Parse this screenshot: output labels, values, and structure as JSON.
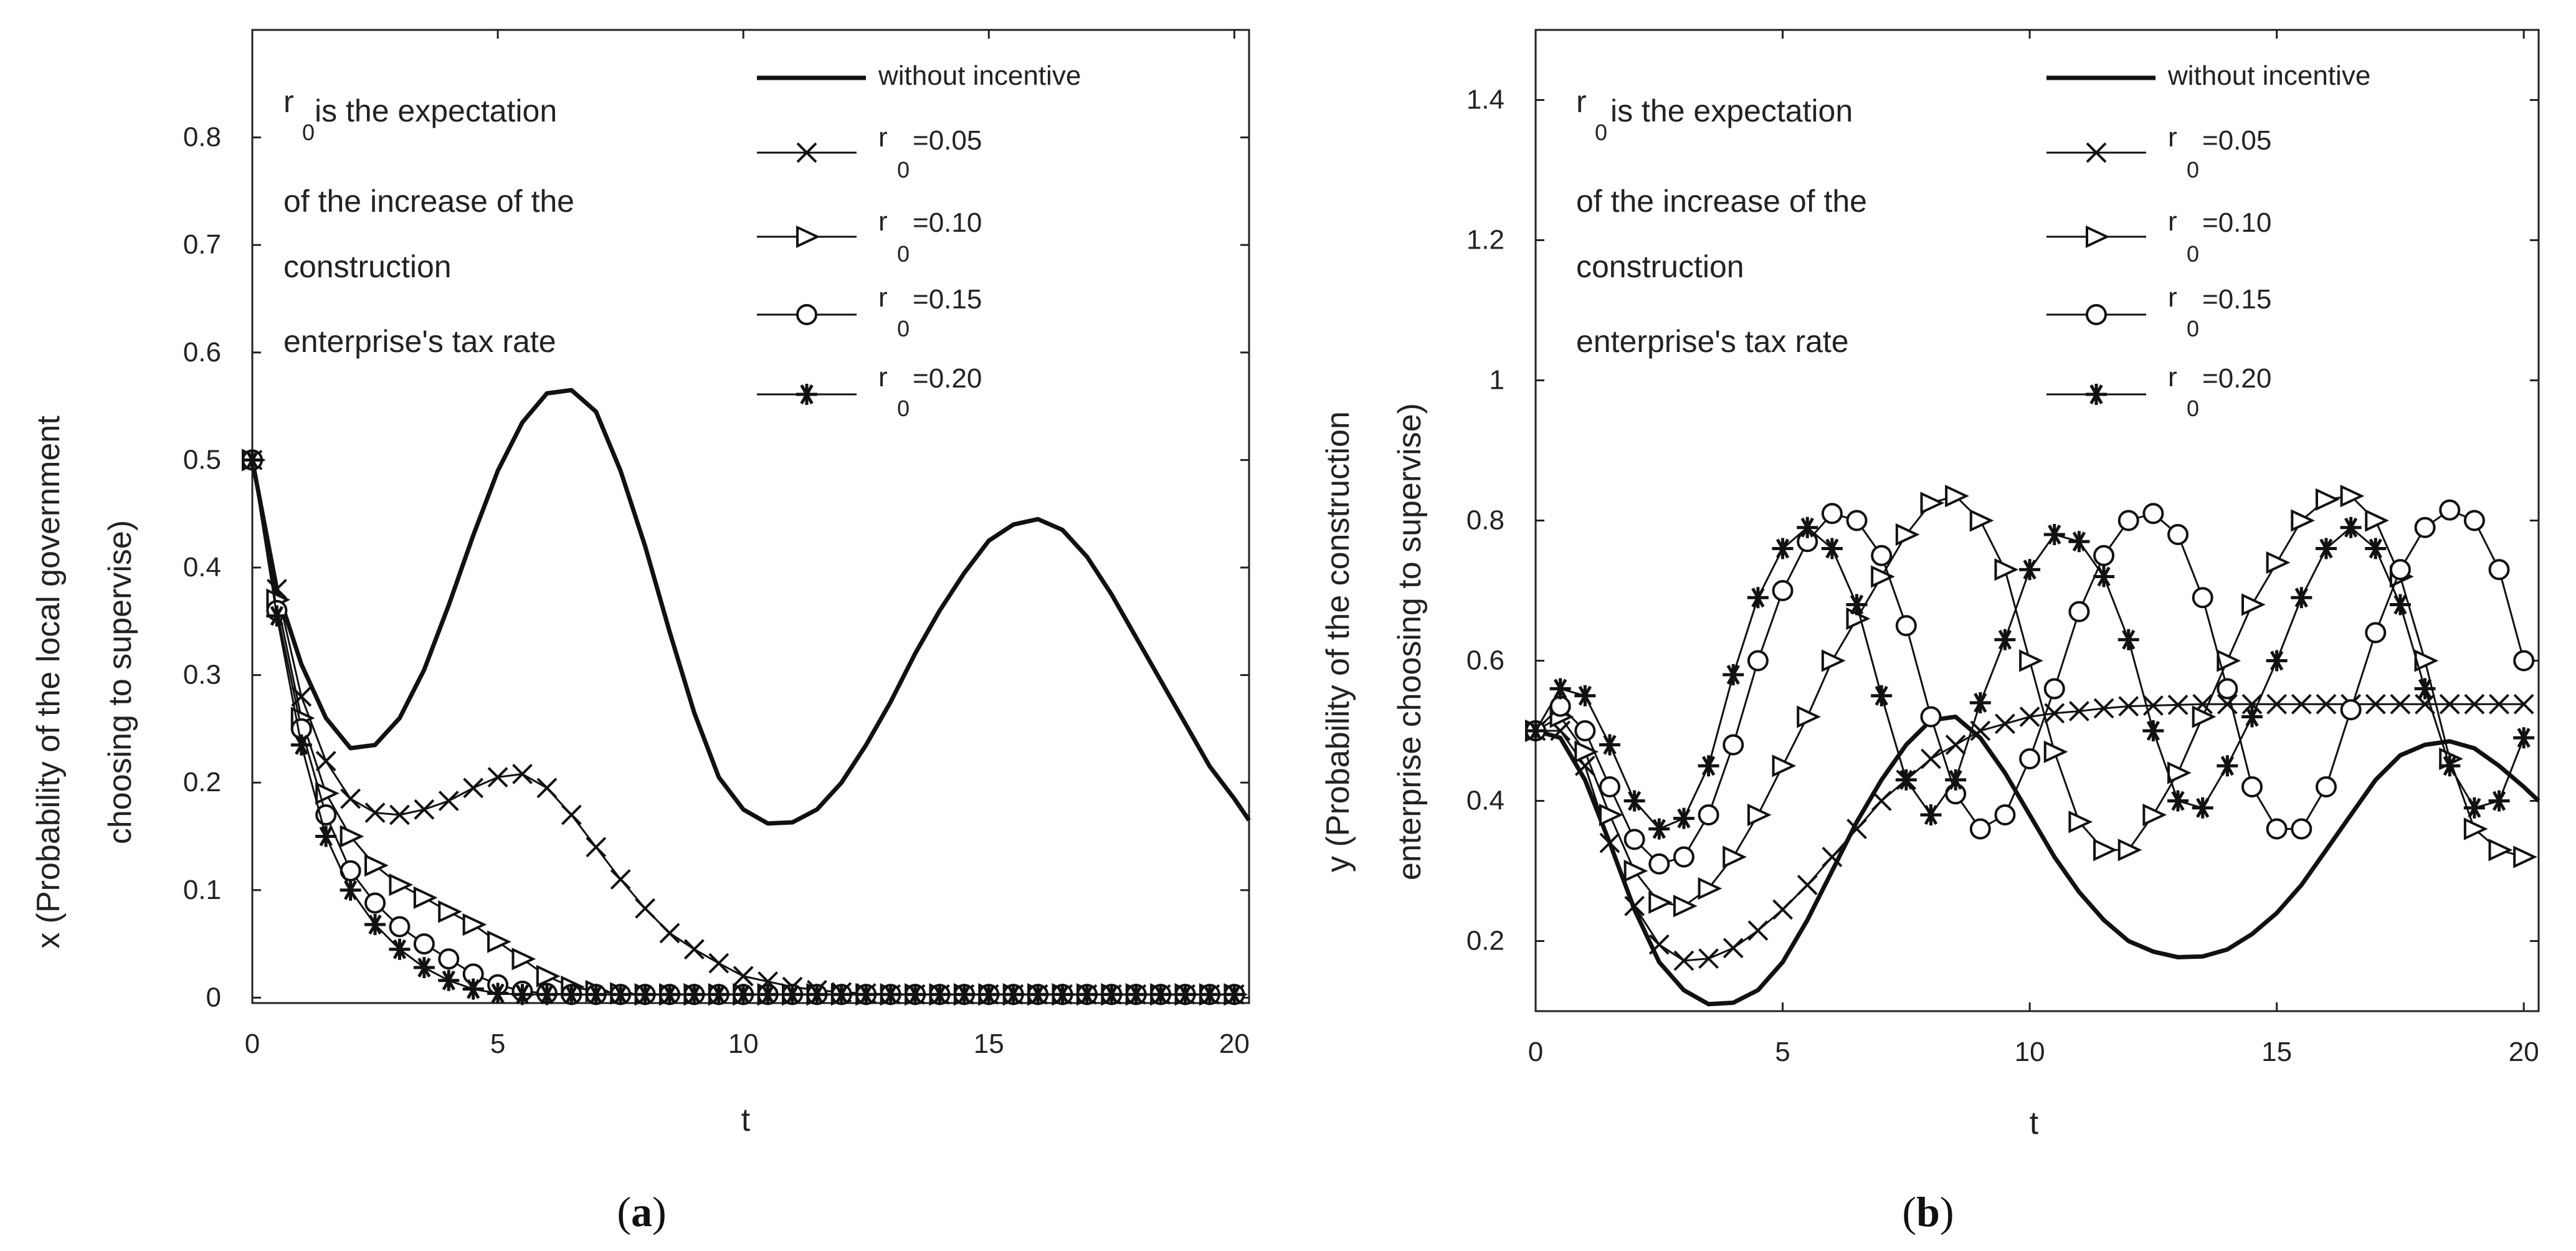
{
  "chart_data": [
    {
      "type": "line",
      "panel": "a",
      "caption_label": "a",
      "xlabel": "t",
      "ylabel_line1": "x (Probability of the local government",
      "ylabel_line2": "choosing to supervise)",
      "xlim": [
        0,
        20.3
      ],
      "ylim": [
        -0.005,
        0.9
      ],
      "xticks": [
        0,
        5,
        10,
        15,
        20
      ],
      "yticks": [
        0,
        0.1,
        0.2,
        0.3,
        0.4,
        0.5,
        0.6,
        0.7,
        0.8
      ],
      "ytick_labels": [
        "0",
        "0.1",
        "0.2",
        "0.3",
        "0.4",
        "0.5",
        "0.6",
        "0.7",
        "0.8"
      ],
      "annotation": {
        "r_main": "r",
        "r_sub": "0",
        "line1_tail": " is the expectation",
        "line2": "of the increase of the",
        "line3": "construction",
        "line4": "enterprise's tax rate"
      },
      "legend": [
        {
          "label": "without incentive"
        },
        {
          "r": "r",
          "sub": "0",
          "val": "=0.05"
        },
        {
          "r": "r",
          "sub": "0",
          "val": "=0.10"
        },
        {
          "r": "r",
          "sub": "0",
          "val": "=0.15"
        },
        {
          "r": "r",
          "sub": "0",
          "val": "=0.20"
        }
      ],
      "series": [
        {
          "name": "without incentive",
          "marker": "none",
          "x": [
            0,
            0.5,
            1,
            1.5,
            2,
            2.5,
            3,
            3.5,
            4,
            4.5,
            5,
            5.5,
            6,
            6.5,
            7,
            7.5,
            8,
            8.5,
            9,
            9.5,
            10,
            10.5,
            11,
            11.5,
            12,
            12.5,
            13,
            13.5,
            14,
            14.5,
            15,
            15.5,
            16,
            16.5,
            17,
            17.5,
            18,
            18.5,
            19,
            19.5,
            20,
            20.3
          ],
          "y": [
            0.5,
            0.38,
            0.31,
            0.26,
            0.232,
            0.235,
            0.26,
            0.305,
            0.365,
            0.43,
            0.49,
            0.535,
            0.562,
            0.565,
            0.545,
            0.49,
            0.42,
            0.34,
            0.265,
            0.205,
            0.175,
            0.162,
            0.163,
            0.175,
            0.2,
            0.235,
            0.275,
            0.32,
            0.36,
            0.395,
            0.425,
            0.44,
            0.445,
            0.435,
            0.41,
            0.375,
            0.335,
            0.295,
            0.255,
            0.215,
            0.185,
            0.165
          ]
        },
        {
          "name": "r0=0.05",
          "marker": "x",
          "x": [
            0,
            0.5,
            1,
            1.5,
            2,
            2.5,
            3,
            3.5,
            4,
            4.5,
            5,
            5.5,
            6,
            6.5,
            7,
            7.5,
            8,
            8.5,
            9,
            9.5,
            10,
            10.5,
            11,
            11.5,
            12,
            12.5,
            13,
            13.5,
            14,
            14.5,
            15,
            15.5,
            16,
            16.5,
            17,
            17.5,
            18,
            18.5,
            19,
            19.5,
            20
          ],
          "y": [
            0.5,
            0.38,
            0.28,
            0.22,
            0.185,
            0.172,
            0.17,
            0.175,
            0.183,
            0.195,
            0.205,
            0.208,
            0.195,
            0.17,
            0.14,
            0.11,
            0.083,
            0.06,
            0.045,
            0.032,
            0.02,
            0.015,
            0.01,
            0.007,
            0.005,
            0.004,
            0.003,
            0.003,
            0.003,
            0.003,
            0.003,
            0.003,
            0.003,
            0.003,
            0.003,
            0.003,
            0.003,
            0.003,
            0.003,
            0.003,
            0.003
          ]
        },
        {
          "name": "r0=0.10",
          "marker": "triangle-right",
          "x": [
            0,
            0.5,
            1,
            1.5,
            2,
            2.5,
            3,
            3.5,
            4,
            4.5,
            5,
            5.5,
            6,
            6.5,
            7,
            7.5,
            8,
            8.5,
            9,
            9.5,
            10,
            10.5,
            11,
            11.5,
            12,
            12.5,
            13,
            13.5,
            14,
            14.5,
            15,
            15.5,
            16,
            16.5,
            17,
            17.5,
            18,
            18.5,
            19,
            19.5,
            20
          ],
          "y": [
            0.5,
            0.37,
            0.26,
            0.19,
            0.15,
            0.123,
            0.105,
            0.093,
            0.08,
            0.068,
            0.052,
            0.036,
            0.02,
            0.01,
            0.006,
            0.004,
            0.003,
            0.003,
            0.003,
            0.003,
            0.003,
            0.003,
            0.003,
            0.003,
            0.003,
            0.003,
            0.003,
            0.003,
            0.003,
            0.003,
            0.003,
            0.003,
            0.003,
            0.003,
            0.003,
            0.003,
            0.003,
            0.003,
            0.003,
            0.003,
            0.003
          ]
        },
        {
          "name": "r0=0.15",
          "marker": "circle",
          "x": [
            0,
            0.5,
            1,
            1.5,
            2,
            2.5,
            3,
            3.5,
            4,
            4.5,
            5,
            5.5,
            6,
            6.5,
            7,
            7.5,
            8,
            8.5,
            9,
            9.5,
            10,
            10.5,
            11,
            11.5,
            12,
            12.5,
            13,
            13.5,
            14,
            14.5,
            15,
            15.5,
            16,
            16.5,
            17,
            17.5,
            18,
            18.5,
            19,
            19.5,
            20
          ],
          "y": [
            0.5,
            0.36,
            0.25,
            0.17,
            0.118,
            0.088,
            0.066,
            0.05,
            0.036,
            0.022,
            0.012,
            0.006,
            0.004,
            0.003,
            0.003,
            0.003,
            0.003,
            0.003,
            0.003,
            0.003,
            0.003,
            0.003,
            0.003,
            0.003,
            0.003,
            0.003,
            0.003,
            0.003,
            0.003,
            0.003,
            0.003,
            0.003,
            0.003,
            0.003,
            0.003,
            0.003,
            0.003,
            0.003,
            0.003,
            0.003,
            0.003
          ]
        },
        {
          "name": "r0=0.20",
          "marker": "asterisk",
          "x": [
            0,
            0.5,
            1,
            1.5,
            2,
            2.5,
            3,
            3.5,
            4,
            4.5,
            5,
            5.5,
            6,
            6.5,
            7,
            7.5,
            8,
            8.5,
            9,
            9.5,
            10,
            10.5,
            11,
            11.5,
            12,
            12.5,
            13,
            13.5,
            14,
            14.5,
            15,
            15.5,
            16,
            16.5,
            17,
            17.5,
            18,
            18.5,
            19,
            19.5,
            20
          ],
          "y": [
            0.5,
            0.355,
            0.235,
            0.15,
            0.1,
            0.068,
            0.045,
            0.028,
            0.016,
            0.008,
            0.004,
            0.003,
            0.003,
            0.003,
            0.003,
            0.003,
            0.003,
            0.003,
            0.003,
            0.003,
            0.003,
            0.003,
            0.003,
            0.003,
            0.003,
            0.003,
            0.003,
            0.003,
            0.003,
            0.003,
            0.003,
            0.003,
            0.003,
            0.003,
            0.003,
            0.003,
            0.003,
            0.003,
            0.003,
            0.003,
            0.003
          ]
        }
      ]
    },
    {
      "type": "line",
      "panel": "b",
      "caption_label": "b",
      "xlabel": "t",
      "ylabel_line1": "y (Probability of the construction",
      "ylabel_line2": "enterprise choosing to supervise)",
      "xlim": [
        0,
        20.3
      ],
      "ylim": [
        0.1,
        1.5
      ],
      "xticks": [
        0,
        5,
        10,
        15,
        20
      ],
      "yticks": [
        0.2,
        0.4,
        0.6,
        0.8,
        1,
        1.2,
        1.4
      ],
      "ytick_labels": [
        "0.2",
        "0.4",
        "0.6",
        "0.8",
        "1",
        "1.2",
        "1.4"
      ],
      "annotation": {
        "r_main": "r",
        "r_sub": "0",
        "line1_tail": " is the expectation",
        "line2": "of the increase of the",
        "line3": "construction",
        "line4": "enterprise's tax rate"
      },
      "legend": [
        {
          "label": "without incentive"
        },
        {
          "r": "r",
          "sub": "0",
          "val": "=0.05"
        },
        {
          "r": "r",
          "sub": "0",
          "val": "=0.10"
        },
        {
          "r": "r",
          "sub": "0",
          "val": "=0.15"
        },
        {
          "r": "r",
          "sub": "0",
          "val": "=0.20"
        }
      ],
      "series": [
        {
          "name": "without incentive",
          "marker": "none",
          "x": [
            0,
            0.5,
            1,
            1.5,
            2,
            2.5,
            3,
            3.5,
            4,
            4.5,
            5,
            5.5,
            6,
            6.5,
            7,
            7.5,
            8,
            8.5,
            9,
            9.5,
            10,
            10.5,
            11,
            11.5,
            12,
            12.5,
            13,
            13.5,
            14,
            14.5,
            15,
            15.5,
            16,
            16.5,
            17,
            17.5,
            18,
            18.5,
            19,
            19.5,
            20,
            20.3
          ],
          "y": [
            0.5,
            0.49,
            0.43,
            0.34,
            0.245,
            0.17,
            0.13,
            0.11,
            0.112,
            0.13,
            0.17,
            0.23,
            0.3,
            0.37,
            0.43,
            0.48,
            0.515,
            0.52,
            0.49,
            0.44,
            0.38,
            0.32,
            0.27,
            0.23,
            0.2,
            0.185,
            0.177,
            0.178,
            0.188,
            0.21,
            0.24,
            0.28,
            0.33,
            0.38,
            0.43,
            0.465,
            0.48,
            0.485,
            0.475,
            0.45,
            0.42,
            0.4
          ]
        },
        {
          "name": "r0=0.05",
          "marker": "x",
          "x": [
            0,
            0.5,
            1,
            1.5,
            2,
            2.5,
            3,
            3.5,
            4,
            4.5,
            5,
            5.5,
            6,
            6.5,
            7,
            7.5,
            8,
            8.5,
            9,
            9.5,
            10,
            10.5,
            11,
            11.5,
            12,
            12.5,
            13,
            13.5,
            14,
            14.5,
            15,
            15.5,
            16,
            16.5,
            17,
            17.5,
            18,
            18.5,
            19,
            19.5,
            20
          ],
          "y": [
            0.5,
            0.5,
            0.45,
            0.34,
            0.25,
            0.195,
            0.172,
            0.175,
            0.19,
            0.215,
            0.245,
            0.28,
            0.32,
            0.36,
            0.4,
            0.43,
            0.46,
            0.48,
            0.5,
            0.51,
            0.52,
            0.525,
            0.528,
            0.532,
            0.535,
            0.536,
            0.537,
            0.538,
            0.538,
            0.538,
            0.538,
            0.538,
            0.538,
            0.538,
            0.538,
            0.538,
            0.538,
            0.538,
            0.538,
            0.538,
            0.538
          ]
        },
        {
          "name": "r0=0.10",
          "marker": "triangle-right",
          "x": [
            0,
            0.5,
            1,
            1.5,
            2,
            2.5,
            3,
            3.5,
            4,
            4.5,
            5,
            5.5,
            6,
            6.5,
            7,
            7.5,
            8,
            8.5,
            9,
            9.5,
            10,
            10.5,
            11,
            11.5,
            12,
            12.5,
            13,
            13.5,
            14,
            14.5,
            15,
            15.5,
            16,
            16.5,
            17,
            17.5,
            18,
            18.5,
            19,
            19.5,
            20
          ],
          "y": [
            0.5,
            0.52,
            0.47,
            0.38,
            0.3,
            0.255,
            0.25,
            0.275,
            0.32,
            0.38,
            0.45,
            0.52,
            0.6,
            0.66,
            0.72,
            0.78,
            0.825,
            0.835,
            0.8,
            0.73,
            0.6,
            0.47,
            0.37,
            0.33,
            0.33,
            0.38,
            0.44,
            0.52,
            0.6,
            0.68,
            0.74,
            0.8,
            0.83,
            0.835,
            0.8,
            0.72,
            0.6,
            0.46,
            0.36,
            0.33,
            0.32
          ]
        },
        {
          "name": "r0=0.15",
          "marker": "circle",
          "x": [
            0,
            0.5,
            1,
            1.5,
            2,
            2.5,
            3,
            3.5,
            4,
            4.5,
            5,
            5.5,
            6,
            6.5,
            7,
            7.5,
            8,
            8.5,
            9,
            9.5,
            10,
            10.5,
            11,
            11.5,
            12,
            12.5,
            13,
            13.5,
            14,
            14.5,
            15,
            15.5,
            16,
            16.5,
            17,
            17.5,
            18,
            18.5,
            19,
            19.5,
            20
          ],
          "y": [
            0.5,
            0.535,
            0.5,
            0.42,
            0.345,
            0.31,
            0.32,
            0.38,
            0.48,
            0.6,
            0.7,
            0.77,
            0.81,
            0.8,
            0.75,
            0.65,
            0.52,
            0.41,
            0.36,
            0.38,
            0.46,
            0.56,
            0.67,
            0.75,
            0.8,
            0.81,
            0.78,
            0.69,
            0.56,
            0.42,
            0.36,
            0.36,
            0.42,
            0.53,
            0.64,
            0.73,
            0.79,
            0.815,
            0.8,
            0.73,
            0.6
          ]
        },
        {
          "name": "r0=0.20",
          "marker": "asterisk",
          "x": [
            0,
            0.5,
            1,
            1.5,
            2,
            2.5,
            3,
            3.5,
            4,
            4.5,
            5,
            5.5,
            6,
            6.5,
            7,
            7.5,
            8,
            8.5,
            9,
            9.5,
            10,
            10.5,
            11,
            11.5,
            12,
            12.5,
            13,
            13.5,
            14,
            14.5,
            15,
            15.5,
            16,
            16.5,
            17,
            17.5,
            18,
            18.5,
            19,
            19.5,
            20
          ],
          "y": [
            0.5,
            0.56,
            0.55,
            0.48,
            0.4,
            0.36,
            0.375,
            0.45,
            0.58,
            0.69,
            0.76,
            0.79,
            0.76,
            0.68,
            0.55,
            0.43,
            0.38,
            0.43,
            0.54,
            0.63,
            0.73,
            0.78,
            0.77,
            0.72,
            0.63,
            0.5,
            0.4,
            0.39,
            0.45,
            0.52,
            0.6,
            0.69,
            0.76,
            0.79,
            0.76,
            0.68,
            0.56,
            0.45,
            0.39,
            0.4,
            0.49
          ]
        }
      ]
    }
  ],
  "colors": {
    "ink": "#111111",
    "axis": "#222222",
    "background": "#ffffff"
  }
}
